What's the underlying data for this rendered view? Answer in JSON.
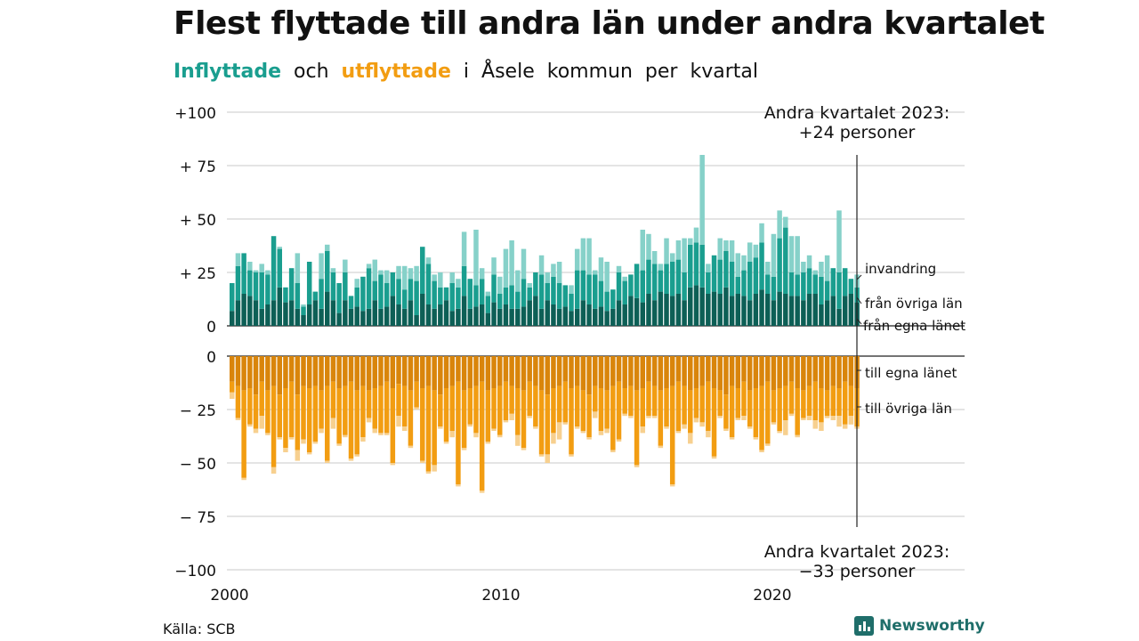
{
  "title": "Flest flyttade till andra län under andra kvartalet",
  "subtitle": {
    "part1": "Inflyttade",
    "part2": "och",
    "part3": "utflyttade",
    "part4": "i",
    "part5": "Åsele",
    "part6": "kommun",
    "part7": "per",
    "part8": "kvartal"
  },
  "source": "Källa: SCB",
  "logo": "Newsworthy",
  "colors": {
    "in_own": "#0d5f56",
    "in_other": "#1a9e8f",
    "in_foreign": "#86d1c9",
    "out_own": "#d9850b",
    "out_other": "#f29d12",
    "out_foreign": "#f7d08f"
  },
  "chart_data": {
    "type": "bar",
    "stacked": true,
    "x_range": [
      2000,
      2023.25
    ],
    "x_ticks": [
      "2000",
      "2010",
      "2020"
    ],
    "y_range_in": [
      0,
      100
    ],
    "y_range_out": [
      -100,
      0
    ],
    "y_ticks_in": [
      "+100",
      "+ 75",
      "+ 50",
      "+ 25",
      "0"
    ],
    "y_ticks_out": [
      "0",
      "− 25",
      "− 50",
      "− 75",
      "−100"
    ],
    "grid": true,
    "series_in": [
      {
        "name": "från egna länet",
        "values": [
          7,
          12,
          15,
          14,
          12,
          8,
          10,
          12,
          18,
          11,
          12,
          8,
          5,
          10,
          12,
          8,
          16,
          12,
          6,
          12,
          8,
          9,
          7,
          8,
          12,
          8,
          9,
          14,
          10,
          8,
          12,
          5,
          15,
          10,
          8,
          10,
          12,
          7,
          8,
          14,
          8,
          9,
          10,
          6,
          11,
          8,
          10,
          8,
          8,
          9,
          12,
          14,
          8,
          12,
          10,
          8,
          9,
          7,
          8,
          12,
          10,
          8,
          9,
          7,
          8,
          12,
          10,
          14,
          13,
          11,
          15,
          12,
          16,
          15,
          14,
          15,
          12,
          18,
          19,
          18,
          15,
          16,
          15,
          18,
          14,
          15,
          14,
          12,
          15,
          17,
          15,
          12,
          16,
          15,
          14,
          14,
          12,
          15,
          15,
          10,
          12,
          14,
          8,
          14,
          15,
          11
        ]
      },
      {
        "name": "från övriga län",
        "values": [
          13,
          16,
          19,
          12,
          13,
          17,
          14,
          30,
          18,
          7,
          15,
          12,
          4,
          20,
          4,
          14,
          19,
          13,
          14,
          13,
          6,
          9,
          16,
          19,
          9,
          16,
          11,
          11,
          12,
          9,
          10,
          16,
          22,
          19,
          13,
          8,
          6,
          13,
          10,
          14,
          14,
          10,
          12,
          8,
          13,
          7,
          8,
          11,
          8,
          13,
          6,
          11,
          16,
          8,
          13,
          12,
          10,
          8,
          18,
          14,
          14,
          16,
          12,
          9,
          9,
          13,
          11,
          10,
          16,
          15,
          16,
          17,
          10,
          14,
          16,
          16,
          13,
          20,
          20,
          20,
          10,
          17,
          16,
          17,
          16,
          8,
          12,
          18,
          17,
          22,
          9,
          11,
          25,
          31,
          11,
          10,
          13,
          12,
          9,
          13,
          9,
          13,
          17,
          13,
          7,
          7
        ]
      },
      {
        "name": "invandring",
        "values": [
          0,
          6,
          0,
          4,
          1,
          4,
          2,
          0,
          1,
          0,
          0,
          14,
          1,
          0,
          0,
          12,
          3,
          2,
          0,
          6,
          0,
          4,
          0,
          2,
          10,
          2,
          6,
          0,
          6,
          11,
          5,
          7,
          0,
          3,
          3,
          7,
          0,
          5,
          4,
          16,
          0,
          26,
          5,
          2,
          8,
          8,
          18,
          21,
          10,
          14,
          2,
          0,
          9,
          5,
          6,
          10,
          0,
          4,
          10,
          15,
          17,
          2,
          11,
          14,
          0,
          3,
          2,
          0,
          0,
          19,
          12,
          6,
          3,
          12,
          4,
          9,
          16,
          3,
          7,
          42,
          4,
          0,
          10,
          5,
          10,
          11,
          7,
          9,
          6,
          9,
          6,
          20,
          13,
          5,
          17,
          18,
          5,
          6,
          2,
          7,
          12,
          0,
          29,
          0,
          0,
          6
        ]
      },
      {
        "name": "till egna länet",
        "values": [
          -12,
          -14,
          -16,
          -15,
          -18,
          -12,
          -16,
          -14,
          -18,
          -15,
          -12,
          -18,
          -14,
          -15,
          -14,
          -16,
          -14,
          -12,
          -15,
          -14,
          -12,
          -16,
          -14,
          -16,
          -15,
          -14,
          -12,
          -15,
          -13,
          -14,
          -16,
          -12,
          -15,
          -14,
          -16,
          -18,
          -15,
          -14,
          -12,
          -16,
          -15,
          -14,
          -12,
          -16,
          -15,
          -14,
          -12,
          -14,
          -15,
          -16,
          -12,
          -14,
          -16,
          -18,
          -15,
          -14,
          -12,
          -15,
          -14,
          -16,
          -18,
          -14,
          -15,
          -16,
          -14,
          -12,
          -15,
          -14,
          -16,
          -15,
          -12,
          -14,
          -16,
          -15,
          -14,
          -12,
          -14,
          -16,
          -15,
          -14,
          -12,
          -15,
          -16,
          -18,
          -14,
          -15,
          -12,
          -16,
          -15,
          -14,
          -12,
          -16,
          -15,
          -14,
          -12,
          -15,
          -16,
          -14,
          -12,
          -15,
          -16,
          -14,
          -15,
          -12,
          -14,
          -15
        ]
      },
      {
        "name": "till övriga län",
        "values": [
          -5,
          -15,
          -41,
          -17,
          -16,
          -16,
          -20,
          -38,
          -20,
          -28,
          -26,
          -26,
          -25,
          -30,
          -26,
          -18,
          -35,
          -17,
          -26,
          -23,
          -36,
          -30,
          -24,
          -13,
          -19,
          -22,
          -24,
          -35,
          -15,
          -19,
          -26,
          -12,
          -34,
          -40,
          -35,
          -15,
          -25,
          -21,
          -48,
          -27,
          -17,
          -22,
          -51,
          -24,
          -19,
          -23,
          -18,
          -13,
          -22,
          -27,
          -16,
          -19,
          -30,
          -28,
          -21,
          -17,
          -19,
          -31,
          -19,
          -19,
          -20,
          -12,
          -20,
          -18,
          -30,
          -27,
          -12,
          -14,
          -35,
          -18,
          -16,
          -14,
          -26,
          -18,
          -46,
          -23,
          -18,
          -20,
          -14,
          -17,
          -23,
          -32,
          -12,
          -16,
          -24,
          -14,
          -16,
          -17,
          -23,
          -30,
          -29,
          -15,
          -20,
          -16,
          -15,
          -22,
          -13,
          -14,
          -18,
          -16,
          -12,
          -14,
          -13,
          -20,
          -14,
          -18
        ]
      },
      {
        "name": "utvandring",
        "values": [
          -3,
          -1,
          -1,
          -1,
          -2,
          -6,
          -1,
          -3,
          -1,
          -2,
          -1,
          -5,
          -2,
          -1,
          -1,
          -2,
          -1,
          -5,
          -1,
          -1,
          -1,
          -1,
          -2,
          -2,
          -2,
          -1,
          -1,
          -1,
          -5,
          -2,
          -1,
          -1,
          -1,
          -1,
          -3,
          -1,
          -1,
          -3,
          -1,
          -1,
          -1,
          -2,
          -1,
          -1,
          -1,
          -1,
          -1,
          -3,
          -5,
          -1,
          -1,
          -1,
          -1,
          -4,
          -5,
          -8,
          -1,
          -1,
          -1,
          -1,
          -1,
          -3,
          -2,
          -2,
          -1,
          -1,
          -1,
          -1,
          -1,
          -3,
          -1,
          -1,
          -1,
          -1,
          -1,
          -1,
          -2,
          -5,
          -2,
          -2,
          -3,
          -1,
          -1,
          -1,
          -1,
          -1,
          -2,
          -1,
          -1,
          -1,
          -1,
          -1,
          -1,
          -7,
          -1,
          -1,
          -1,
          -2,
          -4,
          -4,
          -1,
          -2,
          -5,
          -2,
          -4,
          -1
        ]
      }
    ],
    "legend_in": [
      "invandring",
      "från övriga län",
      "från egna länet"
    ],
    "legend_out": [
      "till egna länet",
      "till övriga län"
    ],
    "annotations": [
      {
        "text_line1": "Andra kvartalet 2023:",
        "text_line2": "+24 personer",
        "x": 2023.25,
        "panel": "in"
      },
      {
        "text_line1": "Andra kvartalet 2023:",
        "text_line2": "−33 personer",
        "x": 2023.25,
        "panel": "out"
      }
    ]
  }
}
